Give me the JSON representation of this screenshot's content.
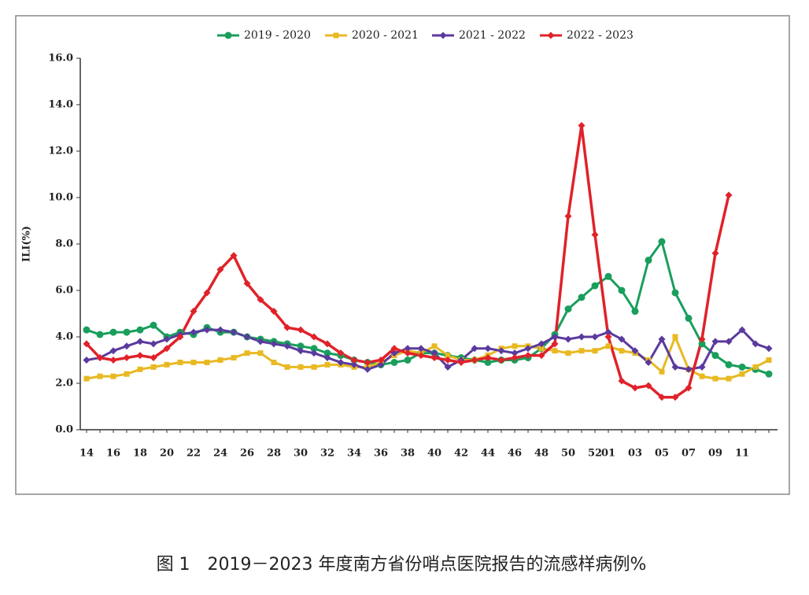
{
  "chart_data": {
    "type": "line",
    "caption": "图 1　2019－2023 年度南方省份哨点医院报告的流感样病例%",
    "y_label": "ILI(%)",
    "categories": [
      "14",
      null,
      "16",
      null,
      "18",
      null,
      "20",
      null,
      "22",
      null,
      "24",
      null,
      "26",
      null,
      "28",
      null,
      "30",
      null,
      "32",
      null,
      "34",
      null,
      "36",
      null,
      "38",
      null,
      "40",
      null,
      "42",
      null,
      "44",
      null,
      "46",
      null,
      "48",
      null,
      "50",
      null,
      "52",
      "01",
      null,
      "03",
      null,
      "05",
      null,
      "07",
      null,
      "09",
      null,
      "11",
      null,
      null
    ],
    "series": [
      {
        "name": "2019 - 2020",
        "color": "#1a9e5c",
        "marker": "circle",
        "values": [
          4.3,
          4.1,
          4.2,
          4.2,
          4.3,
          4.5,
          4.0,
          4.2,
          4.1,
          4.4,
          4.2,
          4.2,
          4.0,
          3.9,
          3.8,
          3.7,
          3.6,
          3.5,
          3.3,
          3.2,
          3.0,
          2.9,
          2.8,
          2.9,
          3.0,
          3.3,
          3.3,
          3.2,
          3.1,
          3.0,
          2.9,
          3.0,
          3.0,
          3.1,
          3.5,
          4.1,
          5.2,
          5.7,
          6.2,
          6.6,
          6.0,
          5.1,
          7.3,
          8.1,
          5.9,
          4.8,
          3.7,
          3.2,
          2.8,
          2.7,
          2.6,
          2.4
        ]
      },
      {
        "name": "2020 - 2021",
        "color": "#e8b923",
        "marker": "square",
        "values": [
          2.2,
          2.3,
          2.3,
          2.4,
          2.6,
          2.7,
          2.8,
          2.9,
          2.9,
          2.9,
          3.0,
          3.1,
          3.3,
          3.3,
          2.9,
          2.7,
          2.7,
          2.7,
          2.8,
          2.8,
          2.7,
          2.7,
          2.9,
          3.2,
          3.4,
          3.3,
          3.6,
          3.2,
          3.0,
          3.0,
          3.2,
          3.5,
          3.6,
          3.6,
          3.5,
          3.4,
          3.3,
          3.4,
          3.4,
          3.6,
          3.4,
          3.3,
          3.0,
          2.5,
          4.0,
          2.6,
          2.3,
          2.2,
          2.2,
          2.4,
          2.7,
          3.0
        ]
      },
      {
        "name": "2021 - 2022",
        "color": "#5b3a9e",
        "marker": "diamond",
        "values": [
          3.0,
          3.1,
          3.4,
          3.6,
          3.8,
          3.7,
          3.9,
          4.1,
          4.2,
          4.3,
          4.3,
          4.2,
          4.0,
          3.8,
          3.7,
          3.6,
          3.4,
          3.3,
          3.1,
          2.9,
          2.8,
          2.6,
          2.8,
          3.3,
          3.5,
          3.5,
          3.3,
          2.7,
          3.0,
          3.5,
          3.5,
          3.4,
          3.3,
          3.5,
          3.7,
          4.0,
          3.9,
          4.0,
          4.0,
          4.2,
          3.9,
          3.4,
          2.9,
          3.9,
          2.7,
          2.6,
          2.7,
          3.8,
          3.8,
          4.3,
          3.7,
          3.5
        ]
      },
      {
        "name": "2022 - 2023",
        "color": "#e0222a",
        "marker": "diamond",
        "values": [
          3.7,
          3.1,
          3.0,
          3.1,
          3.2,
          3.1,
          3.5,
          4.0,
          5.1,
          5.9,
          6.9,
          7.5,
          6.3,
          5.6,
          5.1,
          4.4,
          4.3,
          4.0,
          3.7,
          3.3,
          3.0,
          2.9,
          3.0,
          3.5,
          3.3,
          3.2,
          3.1,
          3.0,
          2.9,
          3.0,
          3.1,
          3.0,
          3.1,
          3.2,
          3.2,
          3.7,
          9.2,
          13.1,
          8.4,
          4.0,
          2.1,
          1.8,
          1.9,
          1.4,
          1.4,
          1.8,
          3.9,
          7.6,
          10.1,
          null,
          null,
          null
        ]
      }
    ],
    "ylim": [
      0,
      16
    ],
    "yticks": [
      {
        "value": 0,
        "label": "0.0"
      },
      {
        "value": 2,
        "label": "2.0"
      },
      {
        "value": 4,
        "label": "4.0"
      },
      {
        "value": 6,
        "label": "6.0"
      },
      {
        "value": 8,
        "label": "8.0"
      },
      {
        "value": 10,
        "label": "10.0"
      },
      {
        "value": 12,
        "label": "12.0"
      },
      {
        "value": 14,
        "label": "14.0"
      },
      {
        "value": 16,
        "label": "16.0"
      }
    ],
    "legend": "top"
  }
}
